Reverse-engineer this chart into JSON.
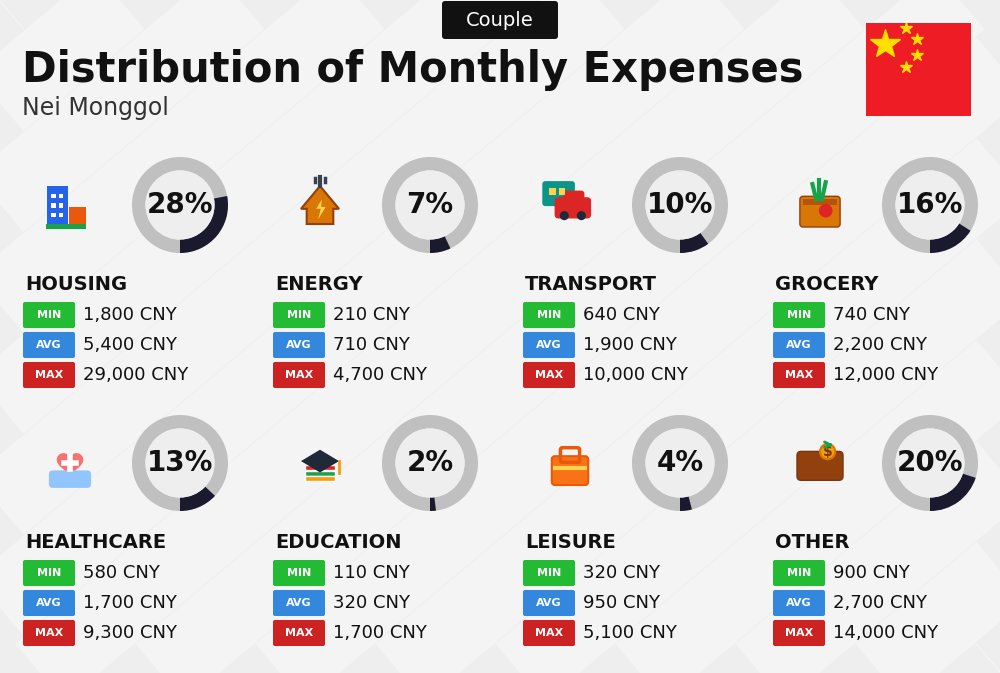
{
  "title": "Distribution of Monthly Expenses",
  "subtitle": "Nei Monggol",
  "badge_text": "Couple",
  "background_color": "#eeeeee",
  "categories": [
    {
      "name": "HOUSING",
      "pct": 28,
      "min": "1,800 CNY",
      "avg": "5,400 CNY",
      "max": "29,000 CNY",
      "row": 0,
      "col": 0
    },
    {
      "name": "ENERGY",
      "pct": 7,
      "min": "210 CNY",
      "avg": "710 CNY",
      "max": "4,700 CNY",
      "row": 0,
      "col": 1
    },
    {
      "name": "TRANSPORT",
      "pct": 10,
      "min": "640 CNY",
      "avg": "1,900 CNY",
      "max": "10,000 CNY",
      "row": 0,
      "col": 2
    },
    {
      "name": "GROCERY",
      "pct": 16,
      "min": "740 CNY",
      "avg": "2,200 CNY",
      "max": "12,000 CNY",
      "row": 0,
      "col": 3
    },
    {
      "name": "HEALTHCARE",
      "pct": 13,
      "min": "580 CNY",
      "avg": "1,700 CNY",
      "max": "9,300 CNY",
      "row": 1,
      "col": 0
    },
    {
      "name": "EDUCATION",
      "pct": 2,
      "min": "110 CNY",
      "avg": "320 CNY",
      "max": "1,700 CNY",
      "row": 1,
      "col": 1
    },
    {
      "name": "LEISURE",
      "pct": 4,
      "min": "320 CNY",
      "avg": "950 CNY",
      "max": "5,100 CNY",
      "row": 1,
      "col": 2
    },
    {
      "name": "OTHER",
      "pct": 20,
      "min": "900 CNY",
      "avg": "2,700 CNY",
      "max": "14,000 CNY",
      "row": 1,
      "col": 3
    }
  ],
  "min_color": "#22bb33",
  "avg_color": "#3388dd",
  "max_color": "#cc2222",
  "donut_filled_color": "#1a1a2e",
  "donut_empty_color": "#c0c0c0",
  "title_fontsize": 30,
  "subtitle_fontsize": 17,
  "badge_fontsize": 14,
  "cat_fontsize": 13,
  "pct_fontsize": 20,
  "value_fontsize": 13
}
